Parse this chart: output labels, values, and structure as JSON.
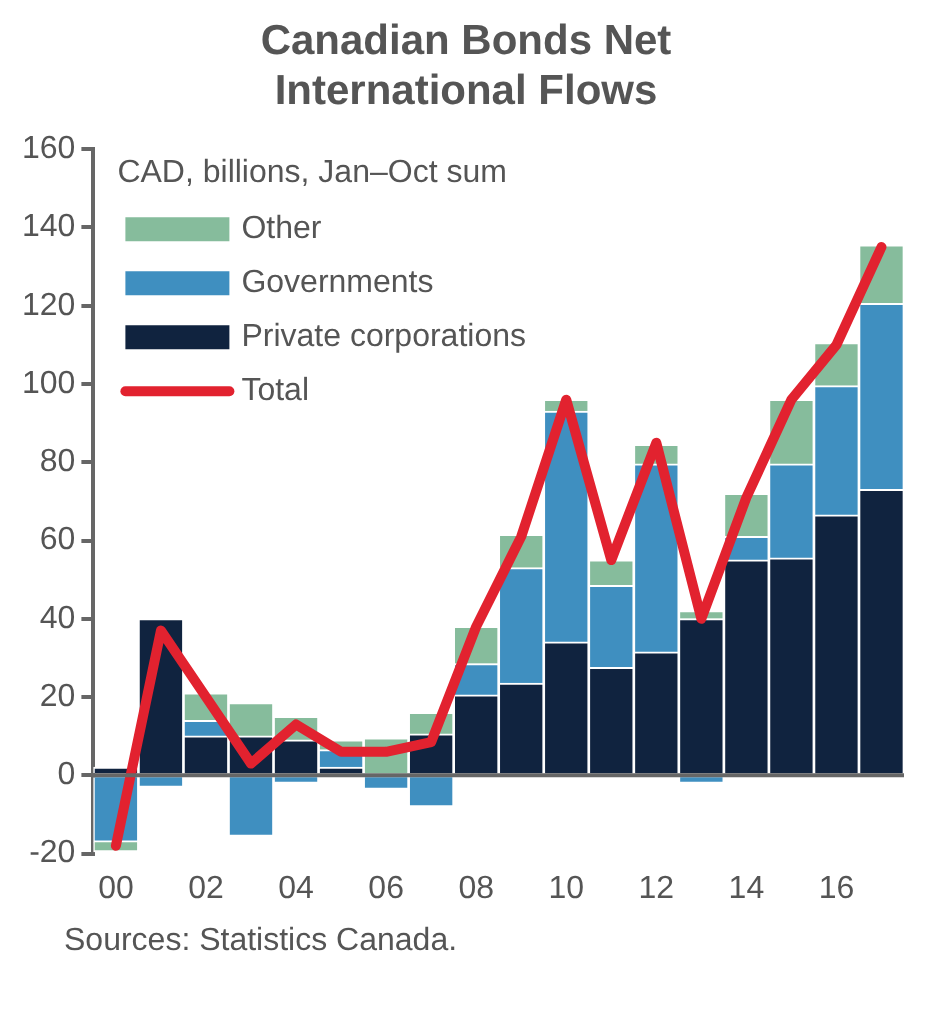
{
  "chart_data": {
    "type": "bar",
    "title": "Canadian Bonds Net International Flows",
    "subtitle": "CAD, billions, Jan–Oct sum",
    "categories": [
      "00",
      null,
      "02",
      null,
      "04",
      null,
      "06",
      null,
      "08",
      null,
      "10",
      null,
      "12",
      null,
      "14",
      null,
      "16",
      null
    ],
    "stacked": true,
    "series": [
      {
        "name": "Private corporations",
        "color": "#10233f",
        "values": [
          2,
          40,
          10,
          10,
          9,
          2,
          0,
          10.5,
          20.5,
          23.5,
          34,
          27.5,
          31.5,
          40,
          55,
          55.5,
          66.5,
          73
        ]
      },
      {
        "name": "Governments",
        "color": "#3f8fc0",
        "values": [
          -17,
          -3,
          4,
          -15.5,
          -2,
          4.5,
          -3.5,
          -8,
          8,
          29.5,
          59,
          21,
          48,
          -2,
          6,
          24,
          33,
          47.5
        ]
      },
      {
        "name": "Other",
        "color": "#86bc9c",
        "values": [
          -2.5,
          0,
          7,
          8.5,
          6,
          2.5,
          9.5,
          5.5,
          9.5,
          8.5,
          3,
          6.5,
          5,
          2,
          11,
          16.5,
          11,
          15
        ]
      },
      {
        "name": "Total",
        "type": "line",
        "color": "#e2222f",
        "values": [
          -18,
          37,
          20,
          3,
          13,
          6,
          6,
          8.5,
          38,
          61,
          96,
          55,
          85,
          40,
          71,
          96,
          110,
          135
        ]
      }
    ],
    "ylim": [
      -20,
      160
    ],
    "yticks": [
      -20,
      0,
      20,
      40,
      60,
      80,
      100,
      120,
      140,
      160
    ],
    "grid": false,
    "ref_lines": [
      {
        "axis": "y",
        "value": 0,
        "color": "#666666"
      }
    ],
    "legend": "top left",
    "marker": "none",
    "annotations": [
      "Sources: Statistics Canada."
    ]
  }
}
